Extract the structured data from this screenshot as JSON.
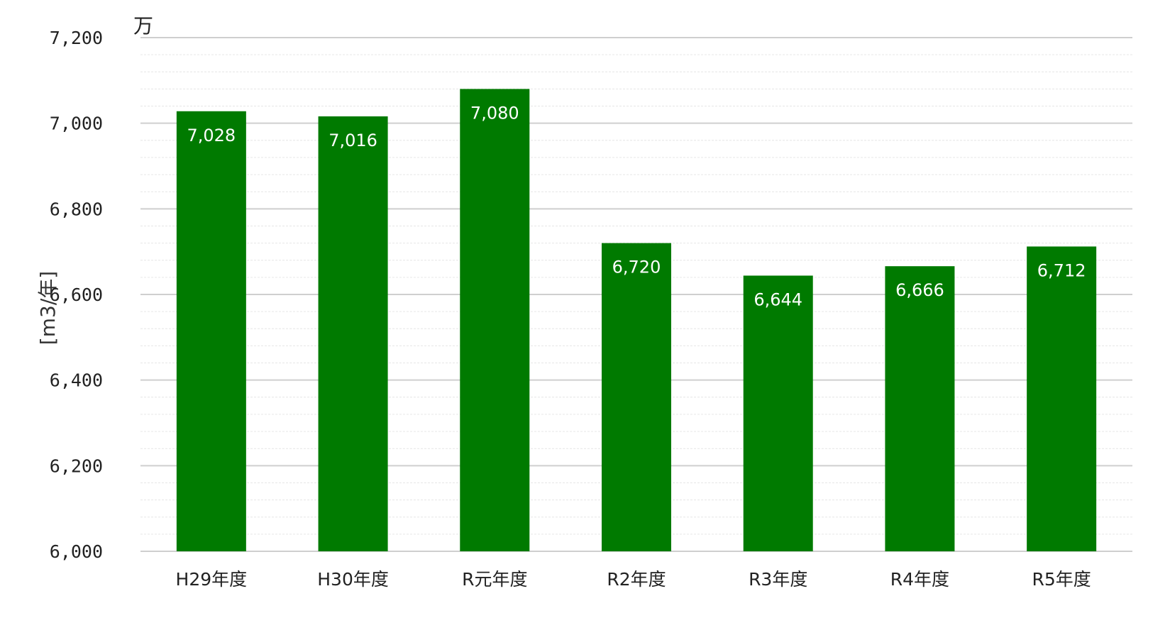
{
  "chart_data": {
    "type": "bar",
    "categories": [
      "H29年度",
      "H30年度",
      "R元年度",
      "R2年度",
      "R3年度",
      "R4年度",
      "R5年度"
    ],
    "values": [
      7028,
      7016,
      7080,
      6720,
      6644,
      6666,
      6712
    ],
    "data_labels": [
      "7,028",
      "7,016",
      "7,080",
      "6,720",
      "6,644",
      "6,666",
      "6,712"
    ],
    "ylabel": "[m3/年]",
    "y_unit_marker": "万",
    "ylim": [
      6000,
      7200
    ],
    "y_ticks": [
      6000,
      6200,
      6400,
      6600,
      6800,
      7000,
      7200
    ],
    "y_tick_labels": [
      "6,000",
      "6,200",
      "6,400",
      "6,600",
      "6,800",
      "7,000",
      "7,200"
    ],
    "grid": true,
    "bar_color": "#007A00",
    "grid_color": "#d9d9d9"
  }
}
